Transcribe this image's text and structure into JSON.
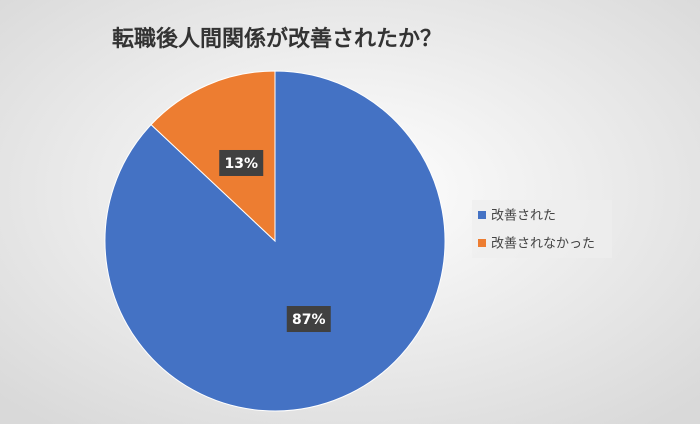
{
  "chart_data": {
    "type": "pie",
    "title": "転職後人間関係が改善されたか？",
    "categories": [
      "改善された",
      "改善されなかった"
    ],
    "values": [
      87,
      13
    ],
    "value_labels": [
      "87%",
      "13%"
    ],
    "colors": [
      "#4472c4",
      "#ed7d31"
    ],
    "legend": "right"
  }
}
